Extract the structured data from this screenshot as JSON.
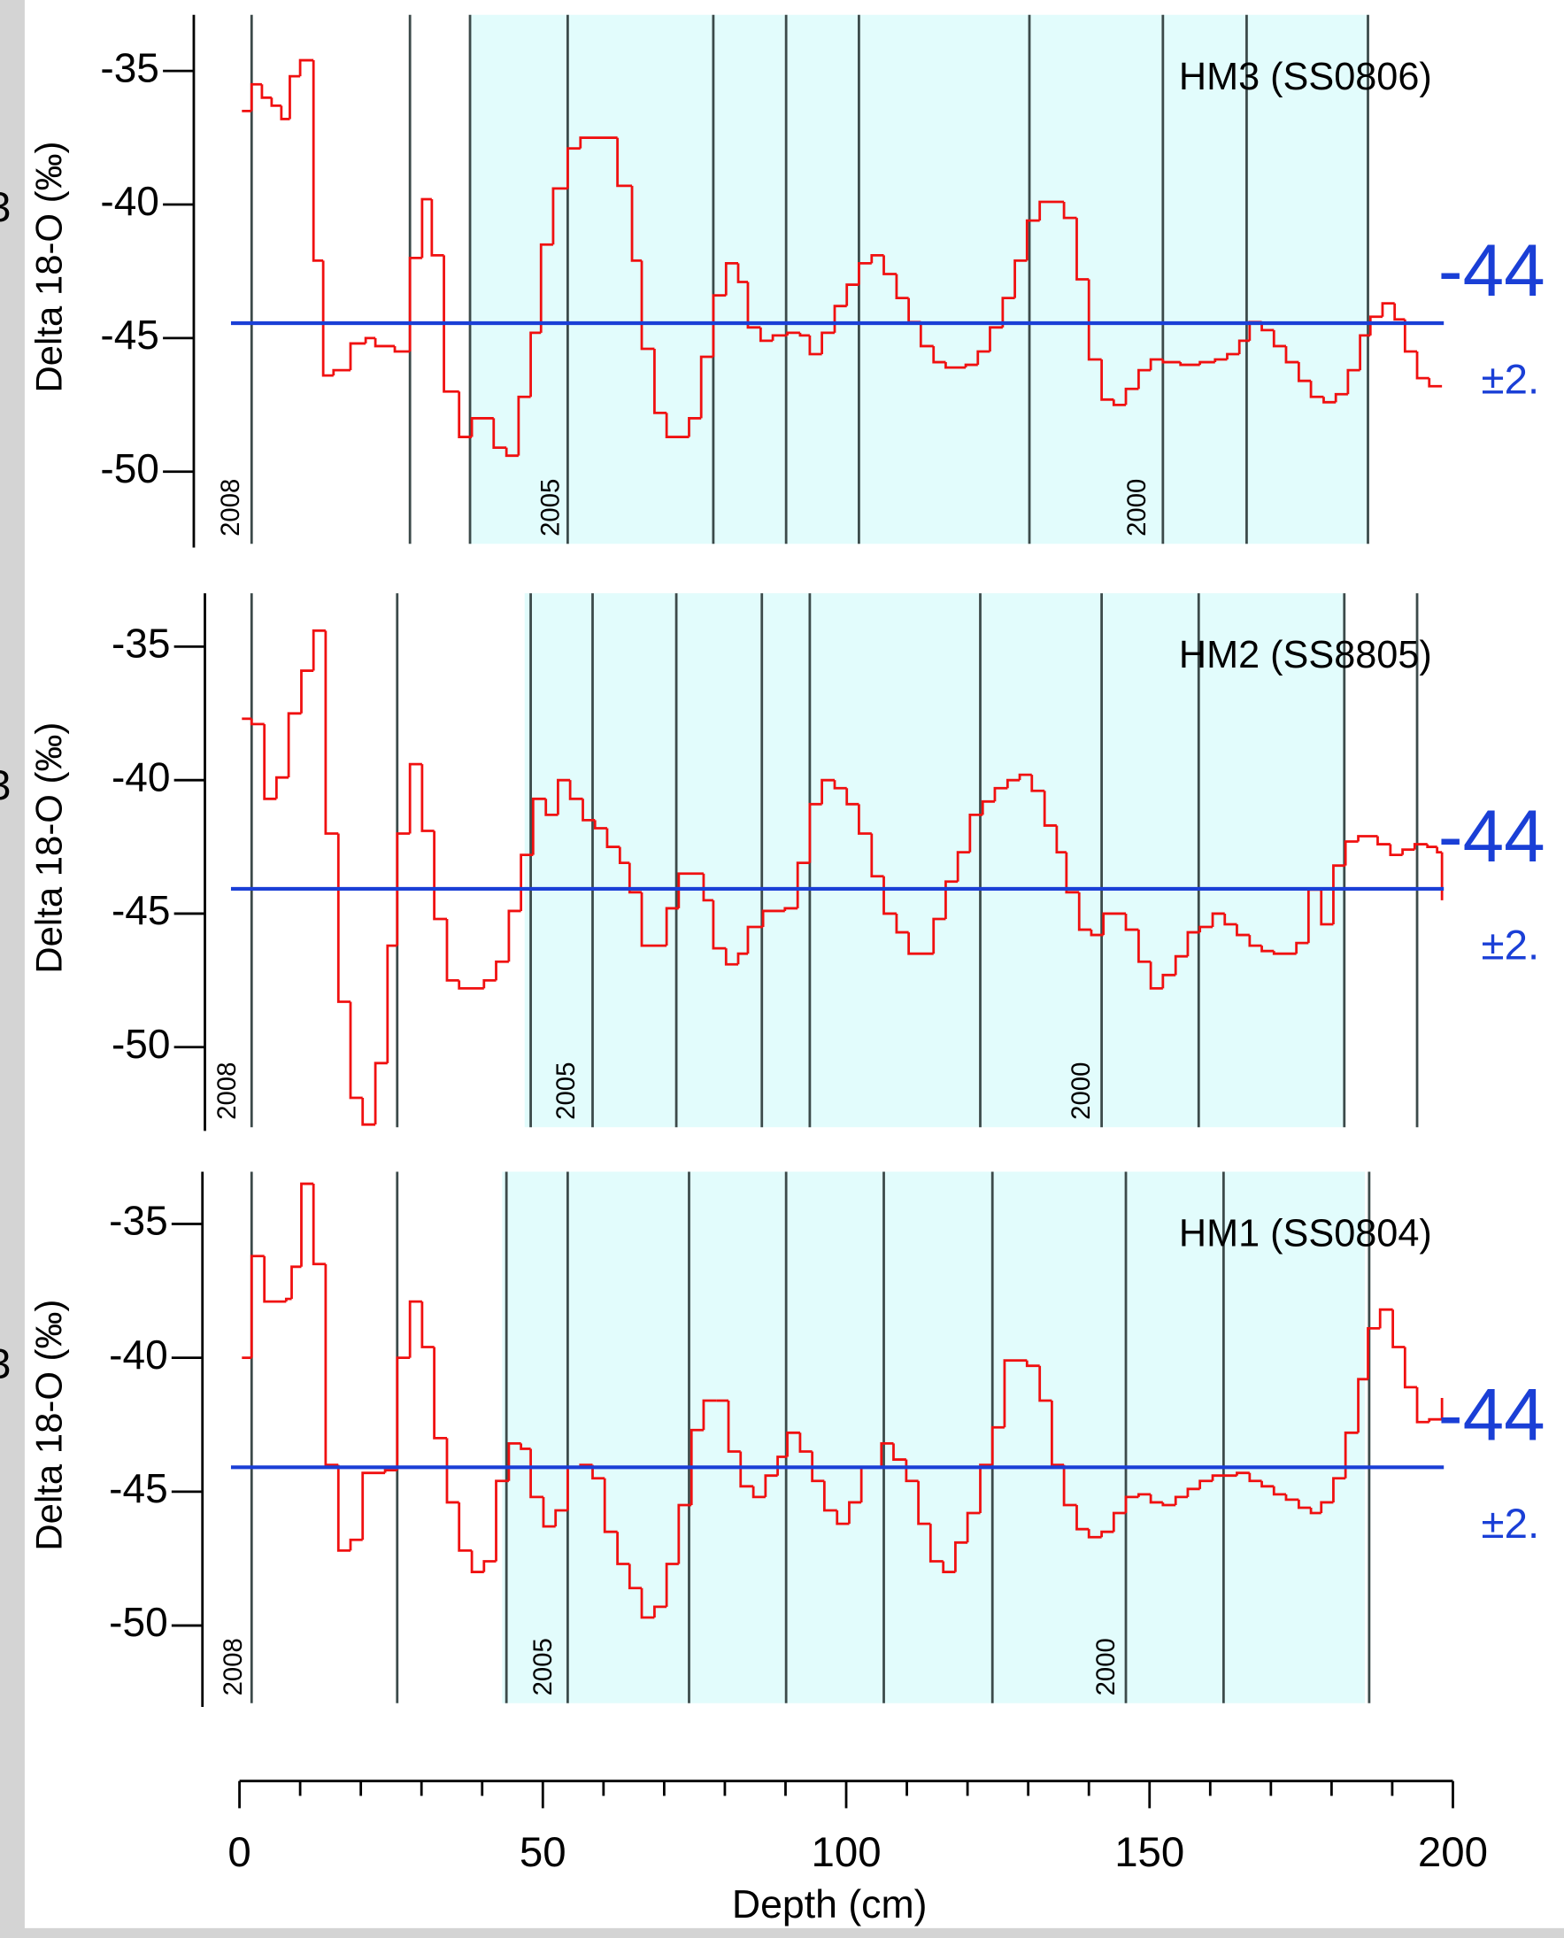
{
  "x_axis": {
    "label": "Depth (cm)",
    "xlim": [
      0,
      200
    ],
    "xticks": [
      0,
      50,
      100,
      150,
      200
    ],
    "minor_ticks": [
      10,
      20,
      30,
      40,
      60,
      70,
      80,
      90,
      110,
      120,
      130,
      140,
      160,
      170,
      180,
      190
    ]
  },
  "chart_data": [
    {
      "type": "line",
      "drawstyle": "steps-post",
      "title": "HM3 (SS0806)",
      "ylabel": "Delta 18-O (‰)",
      "left_label": "3",
      "right_label": "-44",
      "right_sublabel": "±2.",
      "reference_line": -44.44,
      "reference_color": "#1a3fd6",
      "band": [
        38.0,
        186.0
      ],
      "band_color": "#e2fcfc",
      "year_lines": [
        2.0,
        28.1,
        38.0,
        54.1,
        78.1,
        90.1,
        102.1,
        130.2,
        152.2,
        166.0,
        186.0
      ],
      "year_labels": [
        {
          "text": "2008",
          "x": -1.2
        },
        {
          "text": "2005",
          "x": 51.5
        },
        {
          "text": "2000",
          "x": 148.2
        }
      ],
      "ylim": [
        -52.7,
        -32.9
      ],
      "yticks": [
        -50,
        -45,
        -40,
        -35
      ],
      "color": "#f01010",
      "x": [
        0.4,
        2.0,
        3.7,
        5.3,
        6.9,
        8.3,
        10.0,
        12.2,
        13.8,
        15.5,
        18.3,
        20.8,
        22.4,
        25.6,
        28.1,
        30.1,
        31.7,
        33.7,
        36.2,
        38.3,
        41.9,
        44.0,
        46.0,
        48.0,
        49.7,
        51.7,
        54.1,
        56.2,
        58.2,
        62.3,
        64.7,
        66.3,
        68.4,
        70.4,
        74.1,
        76.1,
        78.1,
        80.2,
        82.2,
        83.8,
        85.9,
        87.9,
        90.3,
        92.4,
        94.0,
        96.0,
        98.1,
        100.1,
        102.1,
        104.2,
        106.2,
        108.3,
        110.3,
        112.3,
        114.4,
        116.4,
        119.7,
        121.7,
        123.7,
        125.8,
        127.8,
        129.8,
        131.9,
        135.9,
        138.0,
        140.0,
        142.1,
        144.1,
        146.1,
        148.2,
        150.2,
        152.2,
        155.1,
        158.3,
        160.8,
        162.8,
        164.8,
        166.5,
        168.5,
        170.5,
        172.5,
        174.6,
        176.6,
        178.7,
        180.7,
        182.7,
        184.7,
        186.4,
        188.4,
        190.4,
        192.1,
        194.1,
        196.1,
        198.2
      ],
      "values": [
        -36.5,
        -35.5,
        -36.0,
        -36.3,
        -36.8,
        -35.2,
        -34.6,
        -42.1,
        -46.4,
        -46.2,
        -45.2,
        -45.0,
        -45.3,
        -45.5,
        -42.0,
        -39.8,
        -41.9,
        -47.0,
        -48.7,
        -48.0,
        -49.1,
        -49.4,
        -47.2,
        -44.8,
        -41.5,
        -39.4,
        -37.9,
        -37.5,
        -37.5,
        -39.3,
        -42.1,
        -45.4,
        -47.8,
        -48.7,
        -48.0,
        -45.7,
        -43.4,
        -42.2,
        -42.9,
        -44.6,
        -45.1,
        -44.9,
        -44.8,
        -44.9,
        -45.6,
        -44.8,
        -43.8,
        -43.0,
        -42.2,
        -41.9,
        -42.6,
        -43.5,
        -44.4,
        -45.3,
        -45.9,
        -46.1,
        -46.0,
        -45.5,
        -44.6,
        -43.5,
        -42.1,
        -40.6,
        -39.9,
        -40.5,
        -42.8,
        -45.8,
        -47.3,
        -47.5,
        -46.9,
        -46.2,
        -45.8,
        -45.9,
        -46.0,
        -45.9,
        -45.8,
        -45.6,
        -45.1,
        -44.4,
        -44.7,
        -45.3,
        -45.9,
        -46.6,
        -47.2,
        -47.4,
        -47.1,
        -46.2,
        -44.9,
        -44.2,
        -43.7,
        -44.3,
        -45.5,
        -46.5,
        -46.8,
        -46.8
      ]
    },
    {
      "type": "line",
      "drawstyle": "steps-post",
      "title": "HM2 (SS8805)",
      "ylabel": "Delta 18-O (‰)",
      "left_label": "3",
      "right_label": "-44",
      "right_sublabel": "±2.",
      "reference_line": -44.07,
      "reference_color": "#1a3fd6",
      "band": [
        47.0,
        182.3
      ],
      "band_color": "#e2fcfc",
      "year_lines": [
        2.0,
        26.0,
        48.0,
        58.2,
        72.0,
        86.1,
        94.0,
        122.1,
        142.1,
        158.1,
        182.1,
        194.1
      ],
      "year_labels": [
        {
          "text": "2008",
          "x": -1.8
        },
        {
          "text": "2005",
          "x": 54.1
        },
        {
          "text": "2000",
          "x": 139.0
        }
      ],
      "ylim": [
        -53,
        -33
      ],
      "yticks": [
        -50,
        -45,
        -40,
        -35
      ],
      "color": "#f01010",
      "x": [
        0.4,
        2.0,
        4.1,
        6.1,
        8.1,
        10.2,
        12.2,
        14.2,
        16.3,
        18.3,
        20.3,
        22.4,
        24.4,
        26.0,
        28.1,
        30.1,
        32.1,
        34.2,
        36.2,
        40.3,
        42.3,
        44.4,
        46.4,
        48.4,
        50.5,
        52.5,
        54.5,
        56.6,
        58.6,
        60.6,
        62.7,
        64.3,
        66.3,
        70.4,
        72.4,
        76.5,
        78.1,
        80.2,
        82.2,
        83.8,
        86.3,
        89.9,
        92.0,
        94.0,
        96.0,
        98.1,
        100.1,
        102.1,
        104.2,
        106.2,
        108.3,
        110.3,
        114.4,
        116.4,
        118.4,
        120.4,
        122.5,
        124.5,
        126.6,
        128.6,
        130.6,
        132.7,
        134.7,
        136.3,
        138.4,
        140.4,
        142.4,
        146.1,
        148.2,
        150.2,
        152.2,
        154.3,
        156.3,
        158.3,
        160.4,
        162.4,
        164.4,
        166.5,
        168.5,
        170.5,
        174.2,
        176.2,
        178.3,
        180.3,
        182.3,
        184.4,
        187.6,
        189.7,
        191.7,
        193.7,
        195.8,
        197.4,
        198.2
      ],
      "values": [
        -37.7,
        -37.9,
        -40.7,
        -39.9,
        -37.5,
        -35.9,
        -34.4,
        -42.0,
        -48.3,
        -51.9,
        -52.9,
        -50.6,
        -46.2,
        -42.0,
        -39.4,
        -41.9,
        -45.2,
        -47.5,
        -47.8,
        -47.5,
        -46.8,
        -44.9,
        -42.8,
        -40.7,
        -41.3,
        -40.0,
        -40.7,
        -41.5,
        -41.8,
        -42.5,
        -43.1,
        -44.2,
        -46.2,
        -44.8,
        -43.5,
        -44.5,
        -46.3,
        -46.9,
        -46.5,
        -45.5,
        -44.9,
        -44.8,
        -43.1,
        -40.9,
        -40.0,
        -40.3,
        -40.9,
        -42.0,
        -43.6,
        -45.0,
        -45.7,
        -46.5,
        -45.2,
        -43.8,
        -42.7,
        -41.3,
        -40.8,
        -40.3,
        -40.0,
        -39.8,
        -40.4,
        -41.7,
        -42.7,
        -44.2,
        -45.6,
        -45.8,
        -45.0,
        -45.6,
        -46.8,
        -47.8,
        -47.3,
        -46.6,
        -45.7,
        -45.5,
        -45.0,
        -45.4,
        -45.8,
        -46.2,
        -46.4,
        -46.5,
        -46.1,
        -44.1,
        -45.4,
        -43.2,
        -42.3,
        -42.1,
        -42.4,
        -42.8,
        -42.6,
        -42.4,
        -42.5,
        -42.7,
        -44.5
      ]
    },
    {
      "type": "line",
      "drawstyle": "steps-post",
      "title": "HM1 (SS0804)",
      "ylabel": "Delta 18-O (‰)",
      "left_label": "3",
      "right_label": "-44",
      "right_sublabel": "±2.",
      "reference_line": -44.09,
      "reference_color": "#1a3fd6",
      "band": [
        43.3,
        185.5
      ],
      "band_color": "#e2fcfc",
      "year_lines": [
        2.0,
        26.0,
        44.0,
        54.1,
        74.1,
        90.1,
        106.2,
        124.1,
        146.1,
        162.2,
        186.2
      ],
      "year_labels": [
        {
          "text": "2008",
          "x": -0.8
        },
        {
          "text": "2005",
          "x": 50.3
        },
        {
          "text": "2000",
          "x": 143.1
        }
      ],
      "ylim": [
        -52.9,
        -33.05
      ],
      "yticks": [
        -50,
        -45,
        -40,
        -35
      ],
      "color": "#f01010",
      "x": [
        0.4,
        2.0,
        4.1,
        7.7,
        8.6,
        10.2,
        12.2,
        14.2,
        16.3,
        18.3,
        20.3,
        24.0,
        26.0,
        28.1,
        30.1,
        32.1,
        34.2,
        36.2,
        38.3,
        40.3,
        42.3,
        44.4,
        46.4,
        48.0,
        50.1,
        52.1,
        54.1,
        56.2,
        58.2,
        60.2,
        62.3,
        64.3,
        66.3,
        68.4,
        70.4,
        72.4,
        74.5,
        76.5,
        78.6,
        80.6,
        82.6,
        84.7,
        86.7,
        88.7,
        90.3,
        92.4,
        94.4,
        96.4,
        98.5,
        100.5,
        102.5,
        105.8,
        107.8,
        109.9,
        111.9,
        113.9,
        116.0,
        118.0,
        120.0,
        122.1,
        124.1,
        126.1,
        129.8,
        131.9,
        133.9,
        135.9,
        138.0,
        140.0,
        142.1,
        144.1,
        146.1,
        148.2,
        150.2,
        152.2,
        154.3,
        156.3,
        158.3,
        160.4,
        164.4,
        166.5,
        168.5,
        170.5,
        172.5,
        174.6,
        176.6,
        178.3,
        180.3,
        182.3,
        184.4,
        186.0,
        188.0,
        190.1,
        192.1,
        194.1,
        196.1,
        198.2
      ],
      "values": [
        -40.0,
        -36.2,
        -37.9,
        -37.8,
        -36.6,
        -33.5,
        -36.5,
        -44.0,
        -47.2,
        -46.8,
        -44.3,
        -44.2,
        -40.0,
        -37.9,
        -39.6,
        -43.0,
        -45.4,
        -47.2,
        -48.0,
        -47.6,
        -44.6,
        -43.2,
        -43.4,
        -45.2,
        -46.3,
        -45.7,
        -44.1,
        -44.0,
        -44.5,
        -46.5,
        -47.7,
        -48.6,
        -49.7,
        -49.3,
        -47.7,
        -45.5,
        -42.7,
        -41.6,
        -41.6,
        -43.5,
        -44.8,
        -45.2,
        -44.4,
        -43.7,
        -42.8,
        -43.5,
        -44.6,
        -45.7,
        -46.2,
        -45.4,
        -44.1,
        -43.2,
        -43.8,
        -44.6,
        -46.2,
        -47.6,
        -48.0,
        -46.9,
        -45.8,
        -44.0,
        -42.6,
        -40.1,
        -40.3,
        -41.6,
        -44.0,
        -45.5,
        -46.4,
        -46.7,
        -46.5,
        -45.8,
        -45.2,
        -45.1,
        -45.4,
        -45.5,
        -45.2,
        -44.9,
        -44.6,
        -44.4,
        -44.3,
        -44.6,
        -44.8,
        -45.1,
        -45.3,
        -45.6,
        -45.8,
        -45.4,
        -44.5,
        -42.8,
        -40.8,
        -38.9,
        -38.2,
        -39.6,
        -41.1,
        -42.4,
        -42.3,
        -41.5
      ]
    }
  ]
}
